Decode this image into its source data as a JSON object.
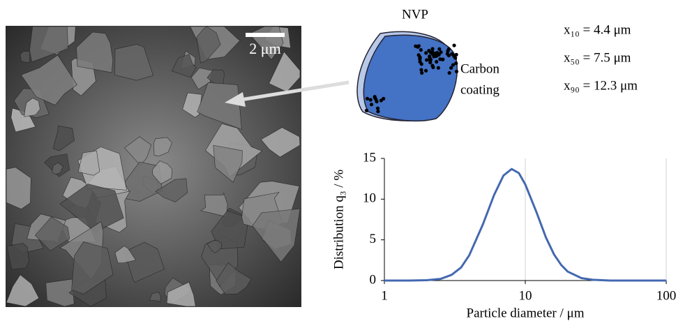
{
  "figure": {
    "scale_bar": "2 μm",
    "schematic": {
      "particle_label": "NVP",
      "coating_label_1": "Carbon",
      "coating_label_2": "coating"
    },
    "sizes": [
      "x₁₀ = 4.4 μm",
      "x₅₀ = 7.5 μm",
      "x₉₀ = 12.3 μm"
    ]
  },
  "chart_data": {
    "type": "line",
    "xlabel": "Particle diameter / μm",
    "ylabel": "Distribution q₃ / %",
    "x": [
      1,
      1.5,
      2,
      2.5,
      3,
      3.5,
      4,
      5,
      6,
      7,
      8,
      9,
      10,
      12,
      14,
      16,
      18,
      20,
      25,
      30,
      40,
      60,
      100
    ],
    "series": [
      {
        "color": "#4468b0",
        "values": [
          0,
          0,
          0.04,
          0.2,
          0.7,
          1.6,
          3.1,
          6.9,
          10.5,
          12.9,
          13.7,
          13.2,
          11.8,
          8.4,
          5.3,
          3.2,
          1.9,
          1.1,
          0.3,
          0.1,
          0,
          0,
          0
        ]
      }
    ],
    "xlim": [
      1,
      100
    ],
    "xticks": [
      1,
      10,
      100
    ],
    "xscale": "log",
    "ylim": [
      0,
      15
    ],
    "yticks": [
      0,
      5,
      10,
      15
    ],
    "grid": "x"
  }
}
